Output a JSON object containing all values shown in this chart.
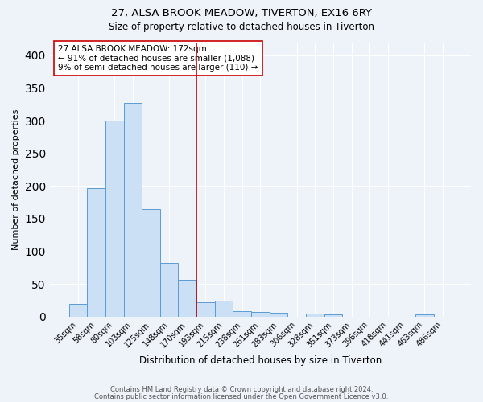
{
  "title1": "27, ALSA BROOK MEADOW, TIVERTON, EX16 6RY",
  "title2": "Size of property relative to detached houses in Tiverton",
  "xlabel": "Distribution of detached houses by size in Tiverton",
  "ylabel": "Number of detached properties",
  "footnote1": "Contains HM Land Registry data © Crown copyright and database right 2024.",
  "footnote2": "Contains public sector information licensed under the Open Government Licence v3.0.",
  "bin_labels": [
    "35sqm",
    "58sqm",
    "80sqm",
    "103sqm",
    "125sqm",
    "148sqm",
    "170sqm",
    "193sqm",
    "215sqm",
    "238sqm",
    "261sqm",
    "283sqm",
    "306sqm",
    "328sqm",
    "351sqm",
    "373sqm",
    "396sqm",
    "418sqm",
    "441sqm",
    "463sqm",
    "486sqm"
  ],
  "bar_values": [
    20,
    197,
    300,
    327,
    165,
    82,
    57,
    22,
    24,
    8,
    7,
    6,
    0,
    5,
    4,
    0,
    0,
    0,
    0,
    4,
    0
  ],
  "bar_color": "#cce0f5",
  "bar_edge_color": "#5b9bd5",
  "vline_color": "#cc0000",
  "annotation_text": "27 ALSA BROOK MEADOW: 172sqm\n← 91% of detached houses are smaller (1,088)\n9% of semi-detached houses are larger (110) →",
  "annotation_box_color": "white",
  "annotation_box_edge_color": "#cc0000",
  "ylim": [
    0,
    420
  ],
  "yticks": [
    0,
    50,
    100,
    150,
    200,
    250,
    300,
    350,
    400
  ],
  "background_color": "#eef2f9",
  "grid_color": "white"
}
